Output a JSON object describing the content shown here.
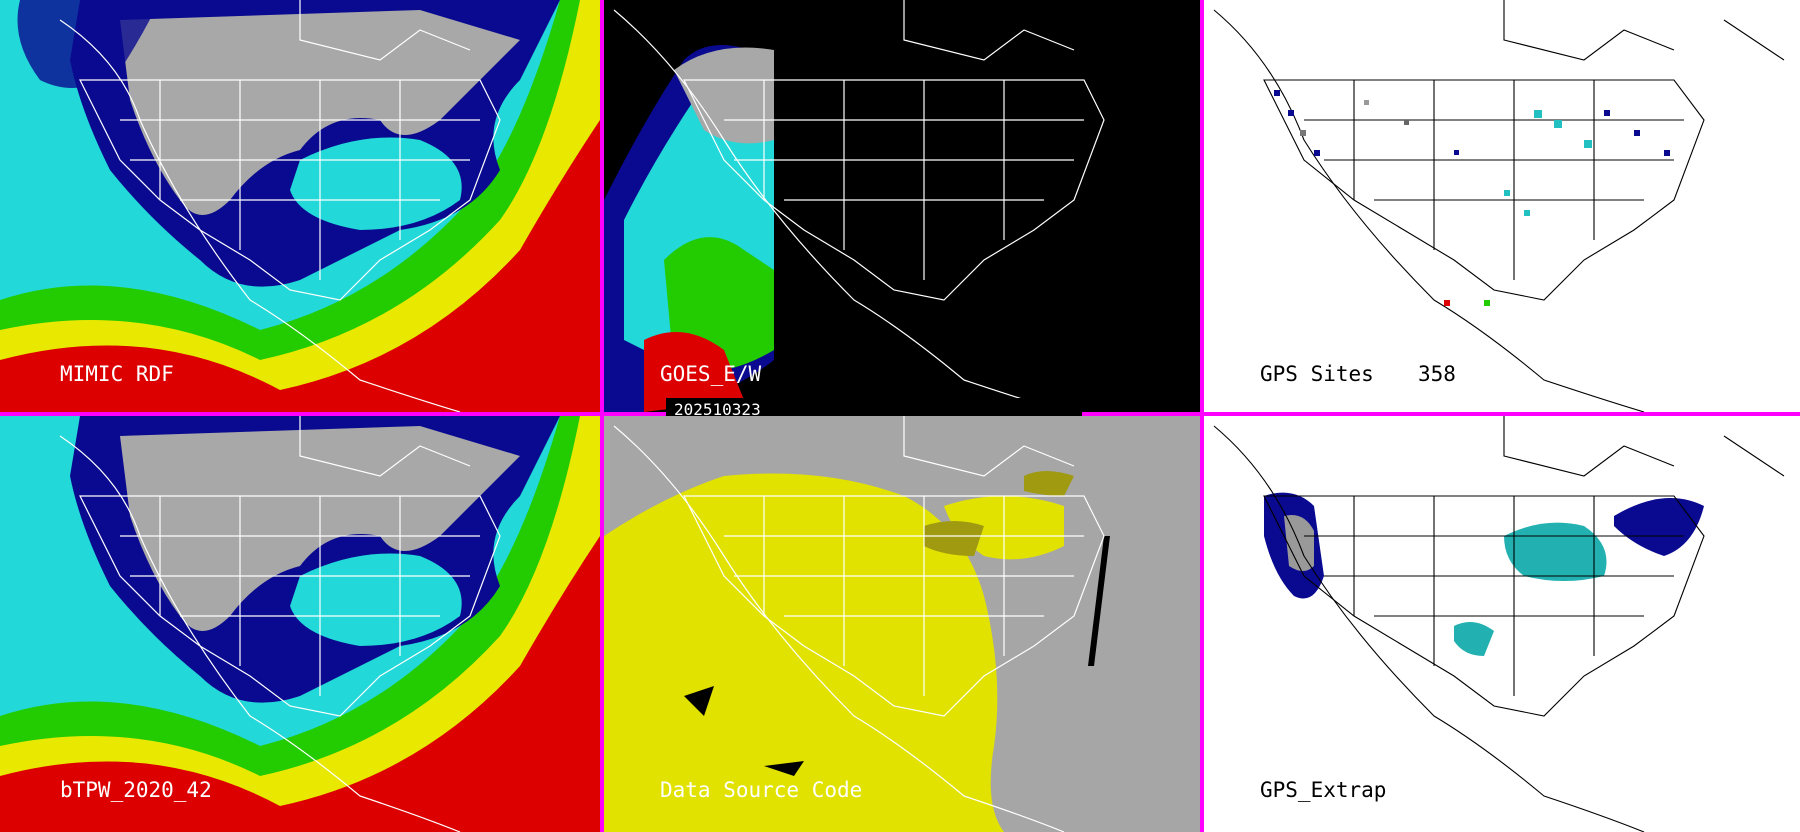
{
  "panels": {
    "p1": {
      "label": "MIMIC RDF"
    },
    "p2": {
      "label": "GOES_E/W",
      "timestamp": "202510323"
    },
    "p3": {
      "label": "GPS Sites",
      "count": "358"
    },
    "p4": {
      "label": "bTPW_2020_42"
    },
    "p5": {
      "label": "Data Source Code"
    },
    "p6": {
      "label": "GPS_Extrap"
    }
  },
  "colors": {
    "separator": "#ff00ff",
    "moisture_red": "#dd0000",
    "moisture_yellow": "#e8e800",
    "moisture_green": "#22cc00",
    "moisture_cyan": "#22d8d8",
    "moisture_navy": "#0a0a90",
    "dry_gray": "#a8a8a8",
    "source_yellow": "#e2e200",
    "source_olive": "#a09a10",
    "source_gray": "#a6a6a6"
  }
}
